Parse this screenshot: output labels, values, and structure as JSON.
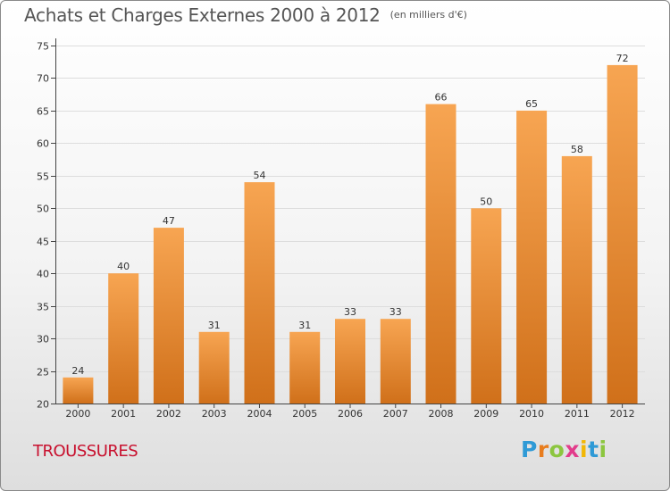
{
  "title": {
    "main": "Achats et Charges Externes 2000 à 2012",
    "unit": "(en milliers d'€)"
  },
  "commune": "TROUSSURES",
  "logo": {
    "text": "Proxiti",
    "letters": [
      "P",
      "r",
      "o",
      "x",
      "i",
      "t",
      "i"
    ],
    "colors": [
      "#2f9ad6",
      "#e87d1e",
      "#8cc63f",
      "#e23c8b",
      "#f2b705",
      "#2f9ad6",
      "#8cc63f"
    ]
  },
  "colors": {
    "bar_top": "#f7a552",
    "bar_bottom": "#d0701a",
    "axis": "#444444",
    "grid": "#dddddd",
    "commune_text": "#c8102e"
  },
  "chart_data": {
    "type": "bar",
    "categories": [
      "2000",
      "2001",
      "2002",
      "2003",
      "2004",
      "2005",
      "2006",
      "2007",
      "2008",
      "2009",
      "2010",
      "2011",
      "2012"
    ],
    "values": [
      24,
      40,
      47,
      31,
      54,
      31,
      33,
      33,
      66,
      50,
      65,
      58,
      72
    ],
    "ylim": [
      20,
      75
    ],
    "yticks": [
      20,
      25,
      30,
      35,
      40,
      45,
      50,
      55,
      60,
      65,
      70,
      75
    ],
    "xlabel": "",
    "ylabel": "",
    "grid": true,
    "data_labels": true
  }
}
